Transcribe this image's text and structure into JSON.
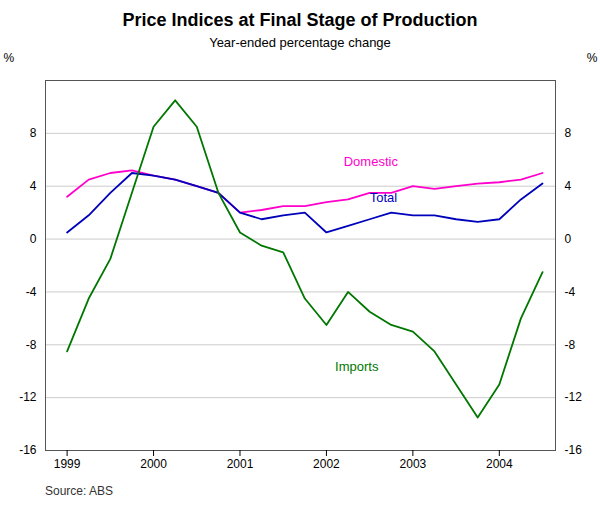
{
  "chart_data": {
    "type": "line",
    "title": "Price Indices at Final Stage of Production",
    "subtitle": "Year-ended percentage change",
    "source": "Source: ABS",
    "x": [
      1999.0,
      1999.25,
      1999.5,
      1999.75,
      2000.0,
      2000.25,
      2000.5,
      2000.75,
      2001.0,
      2001.25,
      2001.5,
      2001.75,
      2002.0,
      2002.25,
      2002.5,
      2002.75,
      2003.0,
      2003.25,
      2003.5,
      2003.75,
      2004.0,
      2004.25,
      2004.5
    ],
    "series": [
      {
        "name": "Domestic",
        "color": "#ff00cc",
        "values": [
          3.2,
          4.5,
          5.0,
          5.2,
          4.8,
          4.5,
          4.0,
          3.5,
          2.0,
          2.2,
          2.5,
          2.5,
          2.8,
          3.0,
          3.5,
          3.5,
          4.0,
          3.8,
          4.0,
          4.2,
          4.3,
          4.5,
          5.0
        ]
      },
      {
        "name": "Total",
        "color": "#0000bb",
        "values": [
          0.5,
          1.8,
          3.5,
          5.0,
          4.8,
          4.5,
          4.0,
          3.5,
          2.0,
          1.5,
          1.8,
          2.0,
          0.5,
          1.0,
          1.5,
          2.0,
          1.8,
          1.8,
          1.5,
          1.3,
          1.5,
          3.0,
          4.2
        ]
      },
      {
        "name": "Imports",
        "color": "#007700",
        "values": [
          -8.5,
          -4.5,
          -1.5,
          3.5,
          8.5,
          10.5,
          8.5,
          3.5,
          0.5,
          -0.5,
          -1.0,
          -4.5,
          -6.5,
          -4.0,
          -5.5,
          -6.5,
          -7.0,
          -8.5,
          -11.0,
          -13.5,
          -11.0,
          -6.0,
          -2.5
        ]
      }
    ],
    "annotations": [
      {
        "text": "Domestic",
        "x": 2002.2,
        "y": 5.5,
        "color": "#ff00cc"
      },
      {
        "text": "Total",
        "x": 2002.5,
        "y": 2.8,
        "color": "#0000bb"
      },
      {
        "text": "Imports",
        "x": 2002.1,
        "y": -10.0,
        "color": "#007700"
      }
    ],
    "xlim": [
      1998.75,
      2004.65
    ],
    "xticks": [
      1999,
      2000,
      2001,
      2002,
      2003,
      2004
    ],
    "ylim": [
      -16,
      12
    ],
    "yticks": [
      -16,
      -12,
      -8,
      -4,
      0,
      4,
      8
    ],
    "ylabel": "%",
    "y2lim": [
      -16,
      12
    ],
    "y2ticks": [
      -16,
      -12,
      -8,
      -4,
      0,
      4,
      8
    ],
    "y2label": "%",
    "grid": true
  }
}
